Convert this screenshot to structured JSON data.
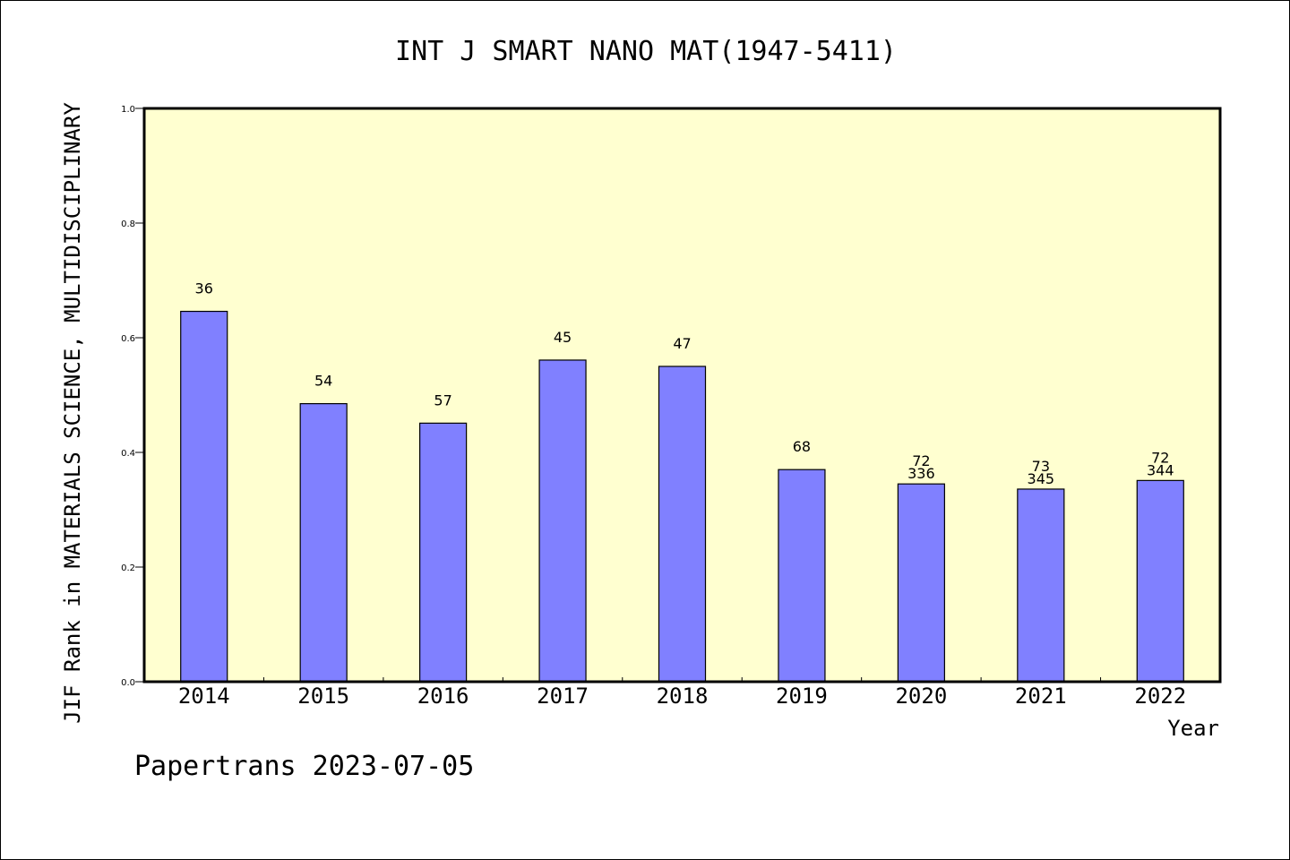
{
  "chart_data": {
    "type": "bar",
    "title": "INT J SMART NANO MAT(1947-5411)",
    "xlabel": "Year",
    "ylabel": "JIF Rank in MATERIALS SCIENCE, MULTIDISCIPLINARY",
    "footer": "Papertrans 2023-07-05",
    "categories": [
      "2014",
      "2015",
      "2016",
      "2017",
      "2018",
      "2019",
      "2020",
      "2021",
      "2022"
    ],
    "values": [
      0.646,
      0.485,
      0.451,
      0.561,
      0.55,
      0.37,
      0.345,
      0.336,
      0.351
    ],
    "labels": [
      [
        "36"
      ],
      [
        "54"
      ],
      [
        "57"
      ],
      [
        "45"
      ],
      [
        "47"
      ],
      [
        "68"
      ],
      [
        "72",
        "336"
      ],
      [
        "73",
        "345"
      ],
      [
        "72",
        "344"
      ]
    ],
    "yticks": [
      "0.0",
      "0.2",
      "0.4",
      "0.6",
      "0.8",
      "1.0"
    ],
    "ylim": [
      0,
      1
    ],
    "grid": false,
    "colors": {
      "bar": "#8080ff",
      "plot_background": "#ffffd0",
      "axis": "#000000"
    }
  }
}
